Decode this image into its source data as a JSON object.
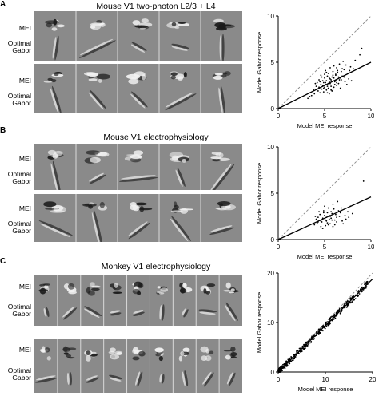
{
  "panels": [
    {
      "letter": "A",
      "title": "Mouse V1 two-photon L2/3 + L4"
    },
    {
      "letter": "B",
      "title": "Mouse V1 electrophysiology"
    },
    {
      "letter": "C",
      "title": "Monkey V1 electrophysiology"
    }
  ],
  "row_labels": {
    "mei": "MEI",
    "gabor_line1": "Optimal",
    "gabor_line2": "Gabor"
  },
  "colors": {
    "stimulus_background": "#8a8a8a",
    "points": "#000000",
    "fit_line": "#000000",
    "identity_line": "#888888"
  },
  "chart_data": [
    {
      "type": "scatter",
      "xlabel": "Model MEI response",
      "ylabel": "Model Gabor response",
      "xlim": [
        0,
        10
      ],
      "ylim": [
        0,
        10
      ],
      "xticks": [
        0,
        5,
        10
      ],
      "yticks": [
        0,
        5,
        10
      ],
      "reference_line": "identity (dashed)",
      "fit_line": {
        "x": [
          0,
          10
        ],
        "y": [
          0,
          5.0
        ]
      },
      "points": [
        [
          5.1,
          2.8
        ],
        [
          5.6,
          3.2
        ],
        [
          4.8,
          2.5
        ],
        [
          6.2,
          3.6
        ],
        [
          5.4,
          2.2
        ],
        [
          4.5,
          2.9
        ],
        [
          6.8,
          3.1
        ],
        [
          5.9,
          4.0
        ],
        [
          4.2,
          2.1
        ],
        [
          7.1,
          4.2
        ],
        [
          5.3,
          3.5
        ],
        [
          6.5,
          2.7
        ],
        [
          4.9,
          1.8
        ],
        [
          5.7,
          2.4
        ],
        [
          6.0,
          3.3
        ],
        [
          7.5,
          3.8
        ],
        [
          3.9,
          1.6
        ],
        [
          5.2,
          3.0
        ],
        [
          6.3,
          4.4
        ],
        [
          4.6,
          2.6
        ],
        [
          5.8,
          1.9
        ],
        [
          6.9,
          3.5
        ],
        [
          4.4,
          3.1
        ],
        [
          5.5,
          2.9
        ],
        [
          6.6,
          4.8
        ],
        [
          3.6,
          1.4
        ],
        [
          7.8,
          4.5
        ],
        [
          5.0,
          2.3
        ],
        [
          6.1,
          2.6
        ],
        [
          4.7,
          3.4
        ],
        [
          5.3,
          1.7
        ],
        [
          6.4,
          3.9
        ],
        [
          7.2,
          2.9
        ],
        [
          4.1,
          2.4
        ],
        [
          5.9,
          3.6
        ],
        [
          8.3,
          5.2
        ],
        [
          5.1,
          4.1
        ],
        [
          6.7,
          2.2
        ],
        [
          4.3,
          1.9
        ],
        [
          5.6,
          2.7
        ],
        [
          7.0,
          5.1
        ],
        [
          3.4,
          1.3
        ],
        [
          6.2,
          3.0
        ],
        [
          5.4,
          3.8
        ],
        [
          4.9,
          2.2
        ],
        [
          7.6,
          3.2
        ],
        [
          6.0,
          4.6
        ],
        [
          5.2,
          2.0
        ],
        [
          4.6,
          3.6
        ],
        [
          8.8,
          5.8
        ],
        [
          5.7,
          3.1
        ],
        [
          6.8,
          4.0
        ],
        [
          4.0,
          2.7
        ],
        [
          5.0,
          3.3
        ],
        [
          6.5,
          3.4
        ],
        [
          7.3,
          4.7
        ],
        [
          5.5,
          1.6
        ],
        [
          4.4,
          2.3
        ],
        [
          6.1,
          2.9
        ],
        [
          5.8,
          3.4
        ],
        [
          7.9,
          3.0
        ],
        [
          3.8,
          2.0
        ],
        [
          6.3,
          2.5
        ],
        [
          5.1,
          2.6
        ],
        [
          4.8,
          3.0
        ],
        [
          6.9,
          4.3
        ],
        [
          5.6,
          4.4
        ],
        [
          7.4,
          2.6
        ],
        [
          4.2,
          2.8
        ],
        [
          6.6,
          3.1
        ],
        [
          5.3,
          2.4
        ],
        [
          5.9,
          2.1
        ],
        [
          7.1,
          3.4
        ],
        [
          4.5,
          1.7
        ],
        [
          6.4,
          4.1
        ],
        [
          5.0,
          3.7
        ],
        [
          8.1,
          4.3
        ],
        [
          5.7,
          2.0
        ],
        [
          6.2,
          3.7
        ],
        [
          4.7,
          2.1
        ],
        [
          9.0,
          6.5
        ],
        [
          5.4,
          2.7
        ],
        [
          6.0,
          2.3
        ],
        [
          3.2,
          1.1
        ],
        [
          7.7,
          4.1
        ],
        [
          5.2,
          3.9
        ],
        [
          6.7,
          3.3
        ],
        [
          4.9,
          2.8
        ],
        [
          5.5,
          3.3
        ],
        [
          6.3,
          2.8
        ]
      ]
    },
    {
      "type": "scatter",
      "xlabel": "Model MEI response",
      "ylabel": "Model Gabor response",
      "xlim": [
        0,
        10
      ],
      "ylim": [
        0,
        10
      ],
      "xticks": [
        0,
        5,
        10
      ],
      "yticks": [
        0,
        5,
        10
      ],
      "reference_line": "identity (dashed)",
      "fit_line": {
        "x": [
          0,
          10
        ],
        "y": [
          0,
          4.6
        ]
      },
      "points": [
        [
          5.2,
          2.4
        ],
        [
          4.6,
          2.0
        ],
        [
          5.8,
          2.8
        ],
        [
          6.3,
          1.9
        ],
        [
          4.9,
          3.1
        ],
        [
          5.5,
          2.2
        ],
        [
          6.8,
          3.4
        ],
        [
          4.2,
          1.8
        ],
        [
          5.1,
          1.5
        ],
        [
          7.2,
          2.6
        ],
        [
          5.9,
          3.8
        ],
        [
          4.5,
          2.7
        ],
        [
          6.1,
          2.1
        ],
        [
          5.3,
          2.9
        ],
        [
          4.8,
          1.2
        ],
        [
          6.6,
          2.5
        ],
        [
          5.6,
          1.7
        ],
        [
          7.5,
          3.0
        ],
        [
          4.3,
          2.4
        ],
        [
          5.0,
          2.6
        ],
        [
          6.4,
          4.1
        ],
        [
          5.7,
          2.3
        ],
        [
          4.7,
          1.9
        ],
        [
          6.9,
          2.0
        ],
        [
          5.4,
          3.4
        ],
        [
          3.9,
          1.6
        ],
        [
          6.2,
          2.7
        ],
        [
          5.1,
          2.1
        ],
        [
          7.8,
          3.6
        ],
        [
          4.4,
          3.0
        ],
        [
          5.9,
          1.4
        ],
        [
          6.5,
          3.1
        ],
        [
          5.3,
          1.8
        ],
        [
          4.1,
          2.2
        ],
        [
          7.0,
          1.7
        ],
        [
          5.6,
          2.5
        ],
        [
          9.2,
          6.3
        ],
        [
          4.8,
          2.3
        ],
        [
          6.0,
          3.3
        ],
        [
          5.2,
          2.0
        ],
        [
          7.3,
          2.2
        ],
        [
          4.6,
          1.4
        ],
        [
          5.8,
          2.1
        ],
        [
          6.7,
          2.9
        ],
        [
          5.0,
          3.6
        ],
        [
          4.0,
          2.5
        ],
        [
          8.0,
          2.8
        ],
        [
          5.4,
          1.6
        ],
        [
          6.3,
          2.4
        ],
        [
          4.9,
          2.9
        ],
        [
          5.7,
          3.0
        ],
        [
          6.1,
          1.6
        ],
        [
          4.3,
          1.9
        ],
        [
          7.6,
          2.4
        ],
        [
          5.5,
          2.6
        ]
      ]
    },
    {
      "type": "scatter",
      "xlabel": "Model MEI response",
      "ylabel": "Model Gabor response",
      "xlim": [
        0,
        20
      ],
      "ylim": [
        0,
        20
      ],
      "xticks": [
        0,
        10,
        20
      ],
      "yticks": [
        0,
        10,
        20
      ],
      "reference_line": "identity (dashed)",
      "fit_line": {
        "x": [
          0,
          20
        ],
        "y": [
          0,
          18.8
        ]
      }
    }
  ]
}
